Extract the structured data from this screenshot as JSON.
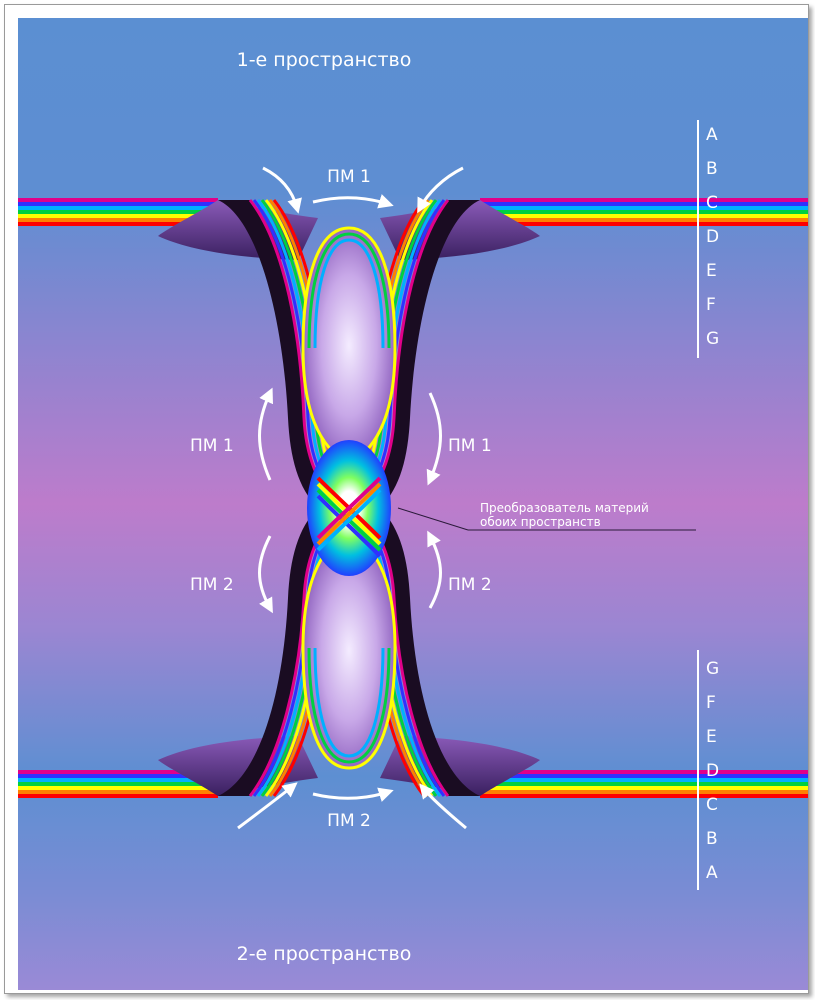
{
  "diagram": {
    "top_space_label": "1-е пространство",
    "bottom_space_label": "2-е пространство",
    "converter_label_line1": "Преобразователь материй",
    "converter_label_line2": "обоих пространств",
    "flow_labels": {
      "top": "ПМ 1",
      "upper_left": "ПМ 1",
      "upper_right": "ПМ 1",
      "lower_left": "ПМ 2",
      "lower_right": "ПМ 2",
      "bottom": "ПМ 2"
    },
    "top_scale_letters": [
      "A",
      "B",
      "C",
      "D",
      "E",
      "F",
      "G"
    ],
    "bottom_scale_letters": [
      "G",
      "F",
      "E",
      "D",
      "C",
      "B",
      "A"
    ],
    "rainbow_colors": [
      "#e0008a",
      "#3030ff",
      "#00b0ff",
      "#00d040",
      "#ffff00",
      "#ff8000",
      "#ff0000"
    ],
    "background_colors": [
      "#5a8fd0",
      "#b87ecc"
    ]
  }
}
